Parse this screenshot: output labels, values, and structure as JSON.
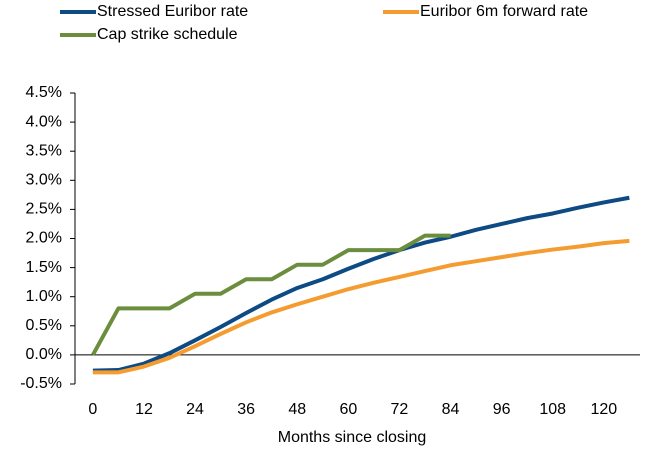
{
  "chart_data": {
    "type": "line",
    "x_label": "Months since closing",
    "x": [
      0,
      6,
      12,
      18,
      24,
      30,
      36,
      42,
      48,
      54,
      60,
      66,
      72,
      78,
      84,
      90,
      96,
      102,
      108,
      114,
      120,
      126
    ],
    "series": [
      {
        "name": "Stressed Euribor rate",
        "color": "#0e4a84",
        "values": [
          -0.27,
          -0.26,
          -0.15,
          0.03,
          0.25,
          0.48,
          0.72,
          0.95,
          1.15,
          1.3,
          1.48,
          1.65,
          1.8,
          1.93,
          2.03,
          2.15,
          2.25,
          2.35,
          2.43,
          2.53,
          2.62,
          2.7
        ]
      },
      {
        "name": "Euribor 6m forward rate",
        "color": "#f59c30",
        "values": [
          -0.3,
          -0.3,
          -0.2,
          -0.05,
          0.15,
          0.36,
          0.56,
          0.73,
          0.87,
          1.0,
          1.13,
          1.24,
          1.34,
          1.44,
          1.54,
          1.61,
          1.68,
          1.75,
          1.81,
          1.86,
          1.92,
          1.96
        ]
      },
      {
        "name": "Cap strike schedule",
        "color": "#6b8e3e",
        "values": [
          0,
          0.8,
          0.8,
          0.8,
          1.05,
          1.05,
          1.3,
          1.3,
          1.55,
          1.55,
          1.8,
          1.8,
          1.8,
          2.05,
          2.05,
          null,
          null,
          null,
          null,
          null,
          null,
          null
        ]
      }
    ],
    "xlim": [
      -4.2,
      128.5
    ],
    "xticks": [
      0,
      12,
      24,
      36,
      48,
      60,
      72,
      84,
      96,
      108,
      120
    ],
    "ylim": [
      -0.5,
      4.5
    ],
    "yticks": [
      {
        "value": -0.5,
        "label": "-0.5%"
      },
      {
        "value": 0,
        "label": "0.0%"
      },
      {
        "value": 0.5,
        "label": "0.5%"
      },
      {
        "value": 1,
        "label": "1.0%"
      },
      {
        "value": 1.5,
        "label": "1.5%"
      },
      {
        "value": 2,
        "label": "2.0%"
      },
      {
        "value": 2.5,
        "label": "2.5%"
      },
      {
        "value": 3,
        "label": "3.0%"
      },
      {
        "value": 3.5,
        "label": "3.5%"
      },
      {
        "value": 4,
        "label": "4.0%"
      },
      {
        "value": 4.5,
        "label": "4.5%"
      }
    ],
    "grid": false,
    "legend": "top"
  }
}
